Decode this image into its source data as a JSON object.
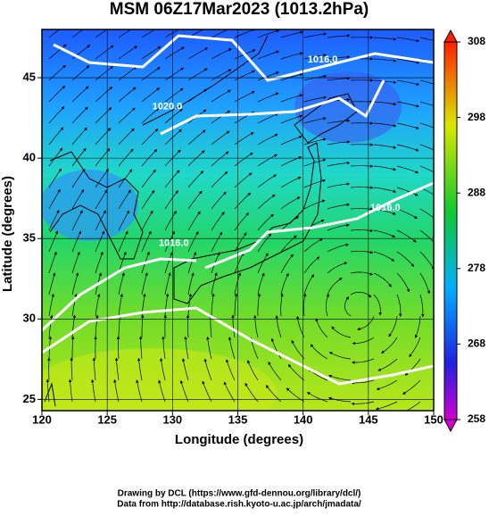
{
  "chart_data": {
    "type": "map",
    "title": "MSM 06Z17Mar2023 (1013.2hPa)",
    "x_label": "Longitude (degrees)",
    "y_label": "Latitude  (degrees)",
    "xlim": [
      120,
      150
    ],
    "ylim": [
      24.3,
      48
    ],
    "xticks": [
      120,
      125,
      130,
      135,
      140,
      145,
      150
    ],
    "yticks": [
      25,
      30,
      35,
      40,
      45
    ],
    "grid": true,
    "colorbar": {
      "lim": [
        258,
        308
      ],
      "ticks": [
        258,
        268,
        278,
        288,
        298,
        308
      ]
    },
    "annotations": [
      {
        "text": "1016.0",
        "x": 141.5,
        "y": 46.1
      },
      {
        "text": "1020.0",
        "x": 129.6,
        "y": 43.2
      },
      {
        "text": "1016.0",
        "x": 146.3,
        "y": 36.9
      },
      {
        "text": "1016.0",
        "x": 130.1,
        "y": 34.7
      }
    ]
  },
  "credits": [
    "Drawing by DCL (https://www.gfd-dennou.org/library/dcl/)",
    "Data from http://database.rish.kyoto-u.ac.jp/arch/jmadata/"
  ]
}
